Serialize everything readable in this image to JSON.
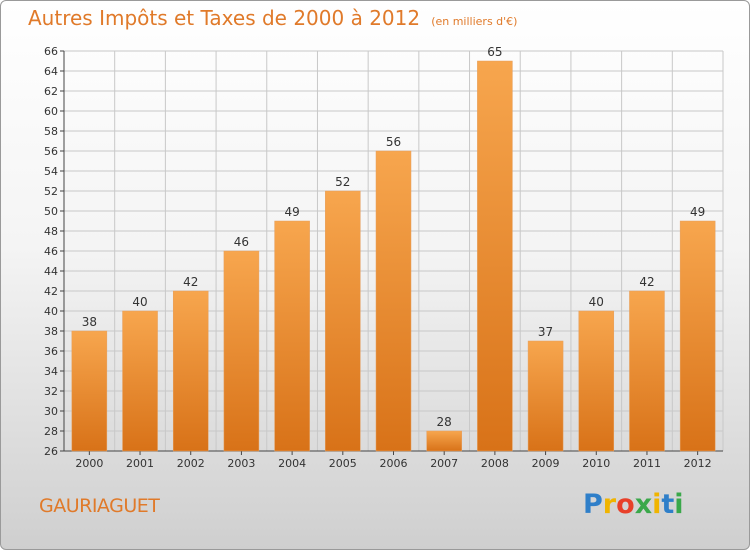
{
  "header": {
    "title": "Autres Impôts et Taxes de 2000 à 2012",
    "unit": "(en milliers d'€)"
  },
  "footer": {
    "commune": "GAURIAGUET",
    "logo_letters": [
      "P",
      "r",
      "o",
      "x",
      "i",
      "t",
      "i"
    ],
    "logo_colors": [
      "#2f7fc9",
      "#f0b400",
      "#e8402a",
      "#3aa84a",
      "#f0b400",
      "#2f7fc9",
      "#3aa84a"
    ]
  },
  "colors": {
    "bar_light": "#f7a64e",
    "bar_dark": "#d87218",
    "title": "#e07a2a",
    "grid": "#c8c8c8"
  },
  "chart_data": {
    "type": "bar",
    "title": "Autres Impôts et Taxes de 2000 à 2012",
    "subtitle": "(en milliers d'€)",
    "xlabel": "",
    "ylabel": "",
    "ylim": [
      26,
      66
    ],
    "ytick_step": 2,
    "grid": true,
    "categories": [
      "2000",
      "2001",
      "2002",
      "2003",
      "2004",
      "2005",
      "2006",
      "2007",
      "2008",
      "2009",
      "2010",
      "2011",
      "2012"
    ],
    "values": [
      38,
      40,
      42,
      46,
      49,
      52,
      56,
      28,
      65,
      37,
      40,
      42,
      49
    ]
  }
}
